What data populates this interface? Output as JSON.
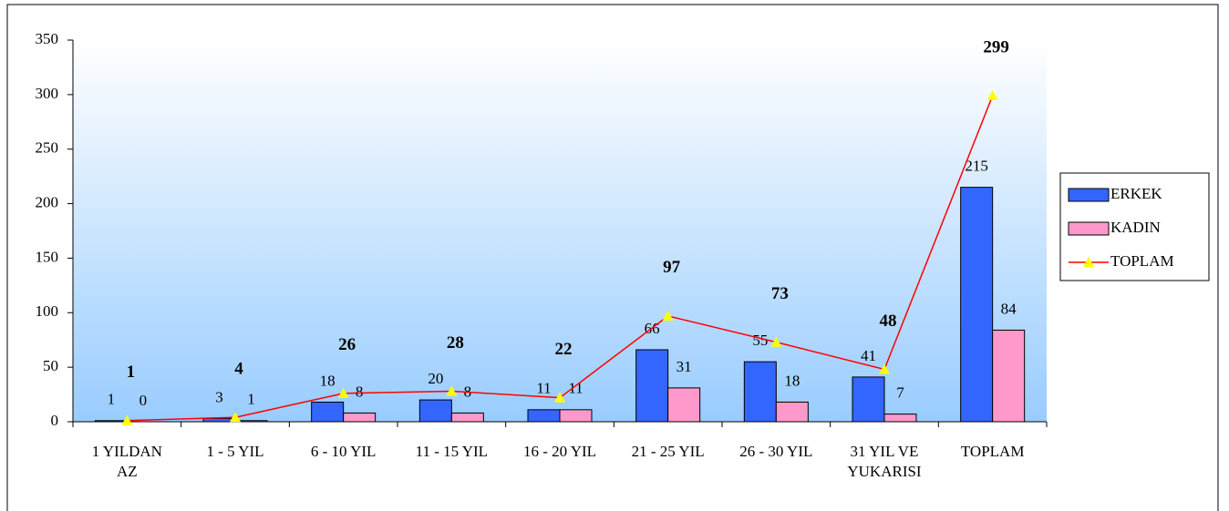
{
  "chart_data": {
    "type": "bar_line",
    "categories": [
      "1 YILDAN\nAZ",
      "1 - 5 YIL",
      "6 - 10 YIL",
      "11 - 15 YIL",
      "16 - 20 YIL",
      "21 - 25 YIL",
      "26 - 30 YIL",
      "31 YIL VE\nYUKARISI",
      "TOPLAM"
    ],
    "series": [
      {
        "name": "ERKEK",
        "color": "#3366ff",
        "kind": "bar",
        "values": [
          1,
          3,
          18,
          20,
          11,
          66,
          55,
          41,
          215
        ]
      },
      {
        "name": "KADIN",
        "color": "#ff99cc",
        "kind": "bar",
        "values": [
          0,
          1,
          8,
          8,
          11,
          31,
          18,
          7,
          84
        ]
      },
      {
        "name": "TOPLAM",
        "color": "#ff0000",
        "marker_color": "#ffff00",
        "kind": "line",
        "values": [
          1,
          4,
          26,
          28,
          22,
          97,
          73,
          48,
          299
        ]
      }
    ],
    "ylim": [
      0,
      350
    ],
    "yticks": [
      0,
      50,
      100,
      150,
      200,
      250,
      300,
      350
    ],
    "legend": "right"
  }
}
